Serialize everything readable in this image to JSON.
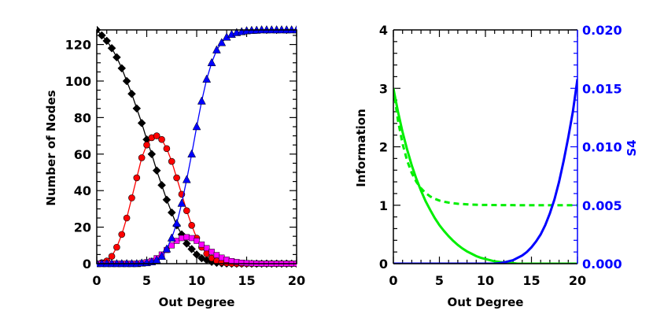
{
  "chart_data": [
    {
      "type": "line",
      "xlabel": "Out Degree",
      "ylabel": "Number of Nodes",
      "xlim": [
        0,
        20
      ],
      "ylim": [
        0,
        128
      ],
      "xticks": [
        "0",
        "5",
        "10",
        "15",
        "20"
      ],
      "yticks": [
        "0",
        "20",
        "40",
        "60",
        "80",
        "100",
        "120"
      ],
      "x": [
        0,
        0.5,
        1,
        1.5,
        2,
        2.5,
        3,
        3.5,
        4,
        4.5,
        5,
        5.5,
        6,
        6.5,
        7,
        7.5,
        8,
        8.5,
        9,
        9.5,
        10,
        10.5,
        11,
        11.5,
        12,
        12.5,
        13,
        13.5,
        14,
        14.5,
        15,
        15.5,
        16,
        16.5,
        17,
        17.5,
        18,
        18.5,
        19,
        19.5,
        20
      ],
      "series": [
        {
          "name": "black diamonds",
          "color": "#000000",
          "marker": "diamond",
          "values": [
            128,
            125,
            122,
            118,
            113,
            107,
            100,
            93,
            85,
            77,
            68,
            60,
            51,
            43,
            35,
            28,
            21,
            16,
            11,
            8,
            5,
            3,
            2,
            1,
            0.5,
            0.2,
            0.1,
            0,
            0,
            0,
            0,
            0,
            0,
            0,
            0,
            0,
            0,
            0,
            0,
            0,
            0
          ]
        },
        {
          "name": "red circles",
          "color": "#ff0000",
          "marker": "circle",
          "values": [
            0,
            0.5,
            1.5,
            4,
            9,
            16,
            25,
            36,
            47,
            58,
            65,
            69,
            70,
            68,
            63,
            56,
            47,
            38,
            29,
            21,
            14,
            9,
            5.5,
            3,
            1.5,
            0.7,
            0.3,
            0.1,
            0,
            0,
            0,
            0,
            0,
            0,
            0,
            0,
            0,
            0,
            0,
            0,
            0
          ]
        },
        {
          "name": "magenta squares",
          "color": "#ff00ff",
          "marker": "square",
          "values": [
            0,
            0,
            0,
            0,
            0,
            0,
            0,
            0,
            0,
            0.3,
            0.8,
            1.5,
            3,
            5,
            7.5,
            10,
            12.5,
            14,
            14.5,
            14,
            12.5,
            10.5,
            8.5,
            6.5,
            4.7,
            3.3,
            2.2,
            1.4,
            0.9,
            0.5,
            0.3,
            0.2,
            0.1,
            0,
            0,
            0,
            0,
            0,
            0,
            0,
            0
          ]
        },
        {
          "name": "blue triangles",
          "color": "#0000ff",
          "marker": "triangle",
          "values": [
            0,
            0,
            0,
            0,
            0,
            0,
            0,
            0,
            0,
            0.3,
            0.5,
            1,
            2,
            4,
            8,
            14,
            22,
            33,
            46,
            60,
            75,
            89,
            101,
            110,
            117,
            121,
            124,
            125.5,
            126.5,
            127,
            127.5,
            127.7,
            127.8,
            128,
            128,
            128,
            128,
            128,
            128,
            128,
            128
          ]
        }
      ]
    },
    {
      "type": "line",
      "xlabel": "Out Degree",
      "ylabel": "Information",
      "ylabel_right": "S4",
      "xlim": [
        0,
        20
      ],
      "ylim": [
        0,
        4
      ],
      "ylim_right": [
        0,
        0.02
      ],
      "xticks": [
        "0",
        "5",
        "10",
        "15",
        "20"
      ],
      "yticks": [
        "0",
        "1",
        "2",
        "3",
        "4"
      ],
      "yticks_right": [
        "0.000",
        "0.005",
        "0.010",
        "0.015",
        "0.020"
      ],
      "right_axis_color": "#0000ff",
      "x": [
        0,
        0.5,
        1,
        1.5,
        2,
        2.5,
        3,
        3.5,
        4,
        4.5,
        5,
        5.5,
        6,
        6.5,
        7,
        7.5,
        8,
        8.5,
        9,
        9.5,
        10,
        10.5,
        11,
        11.5,
        12,
        12.5,
        13,
        13.5,
        14,
        14.5,
        15,
        15.5,
        16,
        16.5,
        17,
        17.5,
        18,
        18.5,
        19,
        19.5,
        20
      ],
      "series": [
        {
          "name": "green solid",
          "color": "#00ee00",
          "style": "solid",
          "axis": "left",
          "values": [
            3.0,
            2.6,
            2.25,
            1.95,
            1.68,
            1.45,
            1.25,
            1.07,
            0.92,
            0.78,
            0.66,
            0.56,
            0.47,
            0.39,
            0.32,
            0.26,
            0.21,
            0.17,
            0.13,
            0.1,
            0.08,
            0.06,
            0.04,
            0.03,
            0.02,
            0.01,
            0.01,
            0,
            0,
            0,
            0,
            0,
            0,
            0,
            0,
            0,
            0,
            0,
            0,
            0,
            0
          ]
        },
        {
          "name": "green dashed",
          "color": "#00ee00",
          "style": "dashed",
          "axis": "left",
          "values": [
            3.0,
            2.45,
            2.05,
            1.76,
            1.55,
            1.4,
            1.29,
            1.21,
            1.15,
            1.11,
            1.08,
            1.06,
            1.045,
            1.035,
            1.025,
            1.02,
            1.015,
            1.01,
            1.008,
            1.006,
            1.005,
            1.004,
            1.003,
            1.002,
            1.002,
            1.001,
            1.001,
            1.0,
            1.0,
            1.0,
            1.0,
            1.0,
            1.0,
            1.0,
            1.0,
            1.0,
            1.0,
            1.0,
            1.0,
            1.0,
            1.0
          ]
        },
        {
          "name": "blue S4",
          "color": "#0000ff",
          "style": "solid",
          "axis": "right",
          "values": [
            0,
            0,
            0,
            0,
            0,
            0,
            0,
            0,
            0,
            0,
            0,
            0,
            0,
            0,
            0,
            0,
            0,
            0,
            0,
            0,
            0,
            0,
            0,
            4e-05,
            0.0001,
            0.0002,
            0.0003,
            0.0005,
            0.0007,
            0.001,
            0.0014,
            0.0019,
            0.0025,
            0.0033,
            0.0043,
            0.0055,
            0.007,
            0.0088,
            0.0108,
            0.013,
            0.0158
          ]
        }
      ]
    }
  ]
}
